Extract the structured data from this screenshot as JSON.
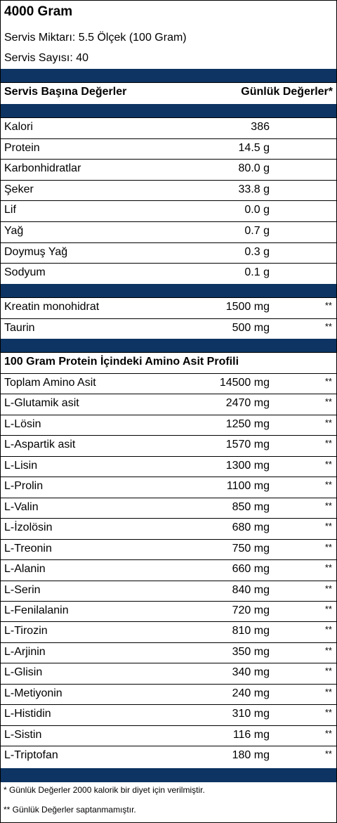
{
  "product": {
    "title": "4000 Gram",
    "serving_size": "Servis Miktarı: 5.5 Ölçek (100 Gram)",
    "servings": "Servis Sayısı: 40"
  },
  "header": {
    "left": "Servis Başına Değerler",
    "right": "Günlük Değerler*"
  },
  "nutrients": [
    {
      "name": "Kalori",
      "value": "386"
    },
    {
      "name": "Protein",
      "value": "14.5 g"
    },
    {
      "name": "Karbonhidratlar",
      "value": "80.0 g"
    },
    {
      "name": "Şeker",
      "value": "33.8 g"
    },
    {
      "name": "Lif",
      "value": "0.0 g"
    },
    {
      "name": "Yağ",
      "value": "0.7 g"
    },
    {
      "name": "Doymuş Yağ",
      "value": "0.3 g"
    },
    {
      "name": "Sodyum",
      "value": "0.1 g"
    }
  ],
  "supplements": [
    {
      "name": "Kreatin monohidrat",
      "value": "1500 mg",
      "dv": "**"
    },
    {
      "name": "Taurin",
      "value": "500 mg",
      "dv": "**"
    }
  ],
  "amino_header": "100 Gram Protein İçindeki Amino Asit Profili",
  "amino_acids": [
    {
      "name": "Toplam Amino Asit",
      "value": "14500 mg",
      "dv": "**"
    },
    {
      "name": "L-Glutamik asit",
      "value": "2470 mg",
      "dv": "**"
    },
    {
      "name": "L-Lösin",
      "value": "1250 mg",
      "dv": "**"
    },
    {
      "name": "L-Aspartik asit",
      "value": "1570 mg",
      "dv": "**"
    },
    {
      "name": "L-Lisin",
      "value": "1300 mg",
      "dv": "**"
    },
    {
      "name": "L-Prolin",
      "value": "1100 mg",
      "dv": "**"
    },
    {
      "name": "L-Valin",
      "value": "850 mg",
      "dv": "**"
    },
    {
      "name": "L-İzolösin",
      "value": "680 mg",
      "dv": "**"
    },
    {
      "name": "L-Treonin",
      "value": "750 mg",
      "dv": "**"
    },
    {
      "name": "L-Alanin",
      "value": "660 mg",
      "dv": "**"
    },
    {
      "name": "L-Serin",
      "value": "840 mg",
      "dv": "**"
    },
    {
      "name": "L-Fenilalanin",
      "value": "720 mg",
      "dv": "**"
    },
    {
      "name": "L-Tirozin",
      "value": "810 mg",
      "dv": "**"
    },
    {
      "name": "L-Arjinin",
      "value": "350 mg",
      "dv": "**"
    },
    {
      "name": "L-Glisin",
      "value": "340 mg",
      "dv": "**"
    },
    {
      "name": "L-Metiyonin",
      "value": "240 mg",
      "dv": "**"
    },
    {
      "name": "L-Histidin",
      "value": "310 mg",
      "dv": "**"
    },
    {
      "name": "L-Sistin",
      "value": "116 mg",
      "dv": "**"
    },
    {
      "name": "L-Triptofan",
      "value": "180 mg",
      "dv": "**"
    }
  ],
  "footnotes": {
    "note1": "* Günlük Değerler 2000 kalorik bir diyet için verilmiştir.",
    "note2": "** Günlük Değerler saptanmamıştır."
  },
  "colors": {
    "band": "#0d3462"
  }
}
